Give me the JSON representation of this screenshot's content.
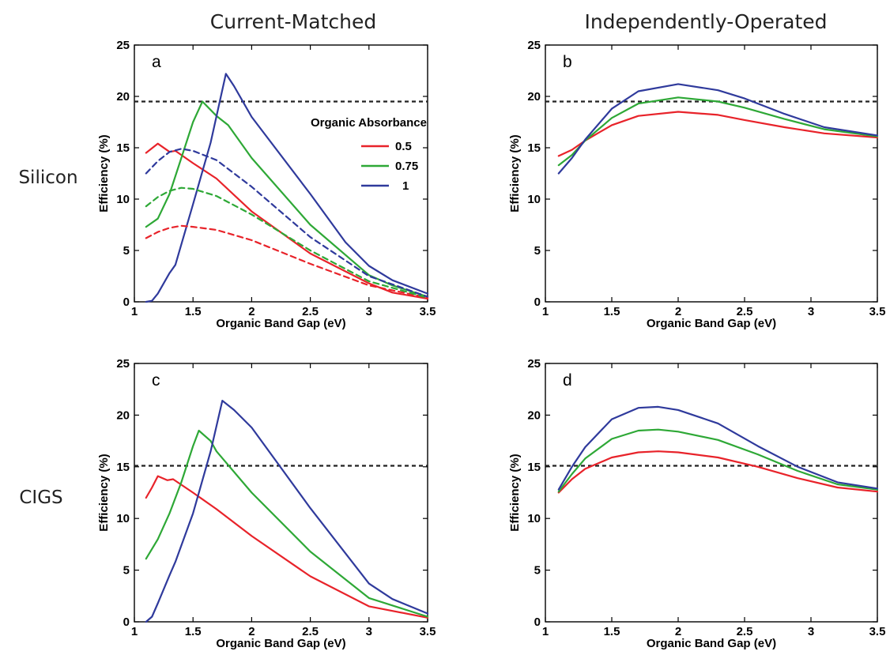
{
  "column_titles": [
    "Current-Matched",
    "Independently-Operated"
  ],
  "row_titles": [
    "Silicon",
    "CIGS"
  ],
  "legend": {
    "title": "Organic Absorbance",
    "entries": [
      "0.5",
      "0.75",
      "1"
    ],
    "colors": [
      "#e8232a",
      "#2ea836",
      "#2f3a9c"
    ],
    "placement": "right, panel a"
  },
  "colors": {
    "reference": "#222222",
    "red": "#e8232a",
    "green": "#2ea836",
    "blue": "#2f3a9c"
  },
  "chart_data": [
    {
      "panel": "a",
      "type": "line",
      "xlabel": "Organic Band Gap  (eV)",
      "ylabel": "Efficiency  (%)",
      "xlim": [
        1,
        3.5
      ],
      "ylim": [
        0,
        25
      ],
      "xticks": [
        "1",
        "1.5",
        "2",
        "2.5",
        "3",
        "3.5"
      ],
      "yticks": [
        "0",
        "5",
        "10",
        "15",
        "20",
        "25"
      ],
      "reference_line": 19.5,
      "series": [
        {
          "name": "0.5",
          "color": "#e8232a",
          "style": "solid",
          "x": [
            1.1,
            1.2,
            1.3,
            1.35,
            1.5,
            1.7,
            2.0,
            2.5,
            3.0,
            3.2,
            3.5
          ],
          "y": [
            14.5,
            15.4,
            14.6,
            14.7,
            13.5,
            12.0,
            8.8,
            4.7,
            1.8,
            0.9,
            0.3
          ]
        },
        {
          "name": "0.75",
          "color": "#2ea836",
          "style": "solid",
          "x": [
            1.1,
            1.2,
            1.3,
            1.4,
            1.5,
            1.58,
            1.7,
            1.8,
            2.0,
            2.5,
            3.0,
            3.2,
            3.5
          ],
          "y": [
            7.3,
            8.1,
            10.5,
            14.0,
            17.5,
            19.5,
            18.1,
            17.2,
            14.0,
            7.5,
            2.6,
            1.6,
            0.5
          ]
        },
        {
          "name": "1",
          "color": "#2f3a9c",
          "style": "solid",
          "x": [
            1.1,
            1.15,
            1.2,
            1.3,
            1.35,
            1.5,
            1.65,
            1.78,
            1.85,
            2.0,
            2.5,
            2.8,
            3.0,
            3.2,
            3.5
          ],
          "y": [
            0,
            0.1,
            0.8,
            2.8,
            3.6,
            9.5,
            15.5,
            22.2,
            21.0,
            18.0,
            10.5,
            5.8,
            3.5,
            2.1,
            0.8
          ]
        },
        {
          "name": "0.5",
          "color": "#e8232a",
          "style": "dashed",
          "x": [
            1.1,
            1.2,
            1.3,
            1.4,
            1.5,
            1.7,
            2.0,
            2.5,
            3.0,
            3.5
          ],
          "y": [
            6.2,
            6.8,
            7.2,
            7.4,
            7.3,
            7.0,
            6.0,
            3.7,
            1.6,
            0.4
          ]
        },
        {
          "name": "0.75",
          "color": "#2ea836",
          "style": "dashed",
          "x": [
            1.1,
            1.2,
            1.3,
            1.4,
            1.5,
            1.7,
            2.0,
            2.5,
            3.0,
            3.5
          ],
          "y": [
            9.3,
            10.2,
            10.8,
            11.1,
            11.0,
            10.3,
            8.5,
            5.0,
            2.0,
            0.4
          ]
        },
        {
          "name": "1",
          "color": "#2f3a9c",
          "style": "dashed",
          "x": [
            1.1,
            1.2,
            1.3,
            1.4,
            1.5,
            1.7,
            2.0,
            2.5,
            3.0,
            3.5
          ],
          "y": [
            12.5,
            13.7,
            14.6,
            14.9,
            14.7,
            13.8,
            11.2,
            6.3,
            2.5,
            0.5
          ]
        }
      ]
    },
    {
      "panel": "b",
      "type": "line",
      "xlabel": "Organic Band Gap  (eV)",
      "ylabel": "Efficiency  (%)",
      "xlim": [
        1,
        3.5
      ],
      "ylim": [
        0,
        25
      ],
      "xticks": [
        "1",
        "1.5",
        "2",
        "2.5",
        "3",
        "3.5"
      ],
      "yticks": [
        "0",
        "5",
        "10",
        "15",
        "20",
        "25"
      ],
      "reference_line": 19.5,
      "series": [
        {
          "name": "0.5",
          "color": "#e8232a",
          "style": "solid",
          "x": [
            1.1,
            1.2,
            1.3,
            1.5,
            1.7,
            2.0,
            2.3,
            2.5,
            2.8,
            3.1,
            3.5
          ],
          "y": [
            14.2,
            14.8,
            15.7,
            17.2,
            18.1,
            18.5,
            18.2,
            17.7,
            17.0,
            16.4,
            16.0
          ]
        },
        {
          "name": "0.75",
          "color": "#2ea836",
          "style": "solid",
          "x": [
            1.1,
            1.2,
            1.3,
            1.5,
            1.7,
            2.0,
            2.3,
            2.5,
            2.8,
            3.1,
            3.5
          ],
          "y": [
            13.3,
            14.3,
            15.7,
            17.9,
            19.3,
            19.9,
            19.5,
            18.9,
            17.8,
            16.8,
            16.1
          ]
        },
        {
          "name": "1",
          "color": "#2f3a9c",
          "style": "solid",
          "x": [
            1.1,
            1.2,
            1.3,
            1.5,
            1.7,
            2.0,
            2.3,
            2.5,
            2.8,
            3.1,
            3.5
          ],
          "y": [
            12.5,
            14.0,
            15.8,
            18.8,
            20.5,
            21.2,
            20.6,
            19.8,
            18.3,
            17.0,
            16.2
          ]
        }
      ]
    },
    {
      "panel": "c",
      "type": "line",
      "xlabel": "Organic Band Gap  (eV)",
      "ylabel": "Efficiency  (%)",
      "xlim": [
        1,
        3.5
      ],
      "ylim": [
        0,
        25
      ],
      "xticks": [
        "1",
        "1.5",
        "2",
        "2.5",
        "3",
        "3.5"
      ],
      "yticks": [
        "0",
        "5",
        "10",
        "15",
        "20",
        "25"
      ],
      "reference_line": 15.1,
      "series": [
        {
          "name": "0.5",
          "color": "#e8232a",
          "style": "solid",
          "x": [
            1.1,
            1.15,
            1.2,
            1.28,
            1.33,
            1.5,
            1.7,
            2.0,
            2.5,
            3.0,
            3.5
          ],
          "y": [
            12.0,
            13.0,
            14.1,
            13.7,
            13.8,
            12.5,
            10.9,
            8.3,
            4.4,
            1.5,
            0.4
          ]
        },
        {
          "name": "0.75",
          "color": "#2ea836",
          "style": "solid",
          "x": [
            1.1,
            1.2,
            1.3,
            1.4,
            1.5,
            1.55,
            1.65,
            1.7,
            2.0,
            2.5,
            3.0,
            3.5
          ],
          "y": [
            6.1,
            8.0,
            10.5,
            13.5,
            17.0,
            18.5,
            17.5,
            16.5,
            12.5,
            6.8,
            2.3,
            0.5
          ]
        },
        {
          "name": "1",
          "color": "#2f3a9c",
          "style": "solid",
          "x": [
            1.1,
            1.15,
            1.2,
            1.3,
            1.35,
            1.5,
            1.65,
            1.75,
            1.85,
            2.0,
            2.5,
            3.0,
            3.2,
            3.5
          ],
          "y": [
            0,
            0.5,
            1.8,
            4.5,
            5.8,
            10.5,
            16.5,
            21.4,
            20.5,
            18.8,
            11.0,
            3.7,
            2.2,
            0.8
          ]
        }
      ]
    },
    {
      "panel": "d",
      "type": "line",
      "xlabel": "Organic Band Gap  (eV)",
      "ylabel": "Efficiency  (%)",
      "xlim": [
        1,
        3.5
      ],
      "ylim": [
        0,
        25
      ],
      "xticks": [
        "1",
        "1.5",
        "2",
        "2.5",
        "3",
        "3.5"
      ],
      "yticks": [
        "0",
        "5",
        "10",
        "15",
        "20",
        "25"
      ],
      "reference_line": 15.1,
      "series": [
        {
          "name": "0.5",
          "color": "#e8232a",
          "style": "solid",
          "x": [
            1.1,
            1.2,
            1.3,
            1.5,
            1.7,
            1.85,
            2.0,
            2.3,
            2.6,
            2.9,
            3.2,
            3.5
          ],
          "y": [
            12.5,
            13.8,
            14.8,
            15.9,
            16.4,
            16.5,
            16.4,
            15.9,
            15.0,
            13.9,
            13.0,
            12.6
          ]
        },
        {
          "name": "0.75",
          "color": "#2ea836",
          "style": "solid",
          "x": [
            1.1,
            1.2,
            1.3,
            1.5,
            1.7,
            1.85,
            2.0,
            2.3,
            2.6,
            2.9,
            3.2,
            3.5
          ],
          "y": [
            12.6,
            14.3,
            15.8,
            17.7,
            18.5,
            18.6,
            18.4,
            17.6,
            16.2,
            14.6,
            13.3,
            12.8
          ]
        },
        {
          "name": "1",
          "color": "#2f3a9c",
          "style": "solid",
          "x": [
            1.1,
            1.2,
            1.3,
            1.5,
            1.7,
            1.85,
            2.0,
            2.3,
            2.6,
            2.9,
            3.2,
            3.5
          ],
          "y": [
            12.8,
            15.0,
            16.9,
            19.6,
            20.7,
            20.8,
            20.5,
            19.2,
            17.0,
            15.0,
            13.5,
            12.9
          ]
        }
      ]
    }
  ]
}
